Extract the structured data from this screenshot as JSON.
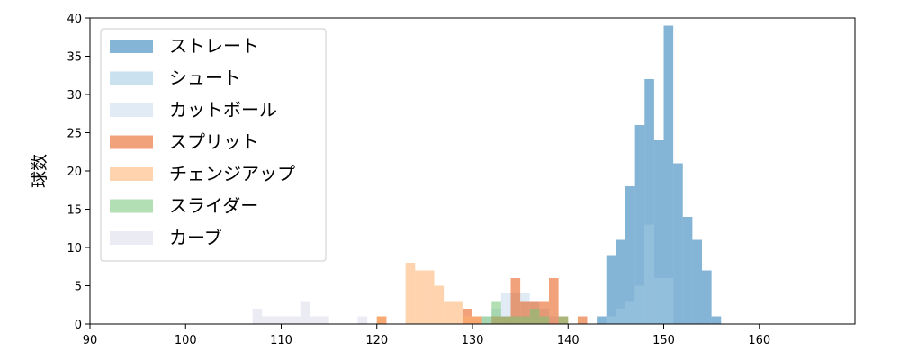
{
  "chart_data": {
    "type": "histogram",
    "title": "",
    "xlabel": "",
    "ylabel": "球数",
    "xlim": [
      90,
      170
    ],
    "ylim": [
      0,
      40
    ],
    "xticks": [
      90,
      100,
      110,
      120,
      130,
      140,
      150,
      160
    ],
    "yticks": [
      0,
      5,
      10,
      15,
      20,
      25,
      30,
      35,
      40
    ],
    "grid": false,
    "legend_position": "top-left",
    "bin_width": 1,
    "series": [
      {
        "name": "ストレート",
        "color": "#1f77b4",
        "bins": [
          [
            143,
            1
          ],
          [
            144,
            9
          ],
          [
            145,
            11
          ],
          [
            146,
            18
          ],
          [
            147,
            26
          ],
          [
            148,
            32
          ],
          [
            149,
            24
          ],
          [
            150,
            39
          ],
          [
            151,
            21
          ],
          [
            152,
            14
          ],
          [
            153,
            11
          ],
          [
            154,
            7
          ],
          [
            155,
            1
          ]
        ]
      },
      {
        "name": "シュート",
        "color": "#9ecae1",
        "bins": [
          [
            144,
            1
          ],
          [
            145,
            2
          ],
          [
            146,
            3
          ],
          [
            147,
            5
          ],
          [
            148,
            13
          ],
          [
            149,
            6
          ],
          [
            150,
            6
          ]
        ]
      },
      {
        "name": "カットボール",
        "color": "#c6dbef",
        "bins": [
          [
            131,
            1
          ],
          [
            132,
            2
          ],
          [
            133,
            4
          ],
          [
            134,
            4
          ],
          [
            135,
            4
          ],
          [
            136,
            3
          ],
          [
            137,
            2
          ],
          [
            138,
            1
          ]
        ]
      },
      {
        "name": "スプリット",
        "color": "#e6550d",
        "bins": [
          [
            120,
            1
          ],
          [
            129,
            2
          ],
          [
            130,
            1
          ],
          [
            132,
            1
          ],
          [
            133,
            1
          ],
          [
            134,
            6
          ],
          [
            135,
            3
          ],
          [
            136,
            3
          ],
          [
            137,
            3
          ],
          [
            138,
            6
          ],
          [
            139,
            1
          ],
          [
            141,
            1
          ]
        ]
      },
      {
        "name": "チェンジアップ",
        "color": "#fdae6b",
        "bins": [
          [
            120,
            1
          ],
          [
            123,
            8
          ],
          [
            124,
            7
          ],
          [
            125,
            7
          ],
          [
            126,
            5
          ],
          [
            127,
            3
          ],
          [
            128,
            3
          ],
          [
            129,
            1
          ],
          [
            130,
            1
          ]
        ]
      },
      {
        "name": "スライダー",
        "color": "#74c476",
        "bins": [
          [
            131,
            1
          ],
          [
            132,
            3
          ],
          [
            133,
            1
          ],
          [
            134,
            1
          ],
          [
            135,
            1
          ],
          [
            136,
            2
          ],
          [
            137,
            1
          ],
          [
            139,
            1
          ]
        ]
      },
      {
        "name": "カーブ",
        "color": "#dadaeb",
        "bins": [
          [
            107,
            2
          ],
          [
            108,
            1
          ],
          [
            109,
            1
          ],
          [
            110,
            1
          ],
          [
            111,
            1
          ],
          [
            112,
            3
          ],
          [
            113,
            1
          ],
          [
            114,
            1
          ],
          [
            118,
            1
          ]
        ]
      }
    ]
  }
}
